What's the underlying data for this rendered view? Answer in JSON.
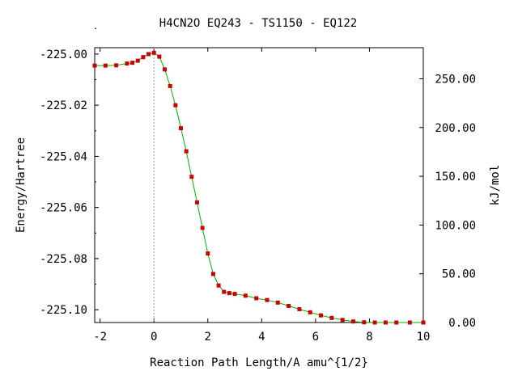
{
  "chart_data": {
    "type": "line",
    "title": "H4CN2O   EQ243 - TS1150 - EQ122",
    "xlabel": "Reaction Path Length/A amu^{1/2}",
    "ylabel": "Energy/Hartree",
    "y2label": "kJ/mol",
    "xlim": [
      -2.2,
      10
    ],
    "ylim": [
      -225.105,
      -224.9975
    ],
    "y2lim": [
      0.0,
      281.9
    ],
    "x_ticks": [
      -2,
      0,
      2,
      4,
      6,
      8,
      10
    ],
    "x_tick_labels": [
      "-2",
      "0",
      "2",
      "4",
      "6",
      "8",
      "10"
    ],
    "y_ticks": [
      -225.1,
      -225.08,
      -225.06,
      -225.04,
      -225.02,
      -225.0
    ],
    "y_tick_labels": [
      "-225.10",
      "-225.08",
      "-225.06",
      "-225.04",
      "-225.02",
      "-225.00"
    ],
    "y2_ticks": [
      0,
      50,
      100,
      150,
      200,
      250
    ],
    "y2_tick_labels": [
      "0.00",
      "50.00",
      "100.00",
      "150.00",
      "200.00",
      "250.00"
    ],
    "ts_x": 0.0,
    "grid": false,
    "line_color": "#00b000",
    "marker_color": "#cc0000",
    "ts_line_color": "#a0a0a0",
    "series": [
      {
        "x": [
          -2.2,
          -1.8,
          -1.4,
          -1.0,
          -0.8,
          -0.6,
          -0.4,
          -0.2,
          0.0,
          0.2,
          0.4,
          0.6,
          0.8,
          1.0,
          1.2,
          1.4,
          1.6,
          1.8,
          2.0,
          2.2,
          2.4,
          2.6,
          2.8,
          3.0,
          3.4,
          3.8,
          4.2,
          4.6,
          5.0,
          5.4,
          5.8,
          6.2,
          6.6,
          7.0,
          7.4,
          7.8,
          8.2,
          8.6,
          9.0,
          9.5,
          10.0
        ],
        "y": [
          -225.0045,
          -225.0045,
          -225.0044,
          -225.0037,
          -225.0034,
          -225.0026,
          -225.0012,
          -225.0,
          -224.9995,
          -225.001,
          -225.006,
          -225.0125,
          -225.02,
          -225.029,
          -225.038,
          -225.048,
          -225.058,
          -225.068,
          -225.078,
          -225.086,
          -225.0905,
          -225.093,
          -225.0935,
          -225.0938,
          -225.0945,
          -225.0955,
          -225.0962,
          -225.0972,
          -225.0985,
          -225.0998,
          -225.101,
          -225.1022,
          -225.1032,
          -225.104,
          -225.1046,
          -225.1049,
          -225.105,
          -225.105,
          -225.105,
          -225.105,
          -225.105
        ]
      }
    ]
  }
}
